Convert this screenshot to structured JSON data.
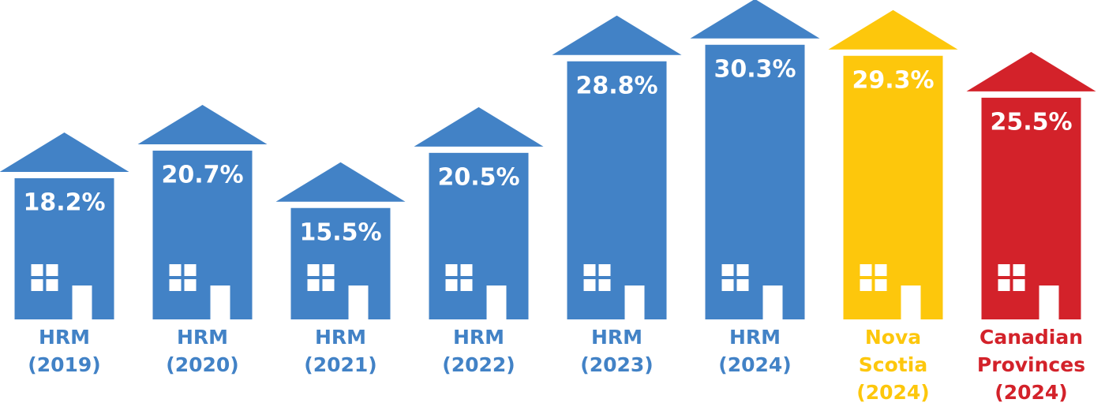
{
  "chart_data": {
    "type": "house-bar",
    "categories": [
      [
        "HRM",
        "(2019)"
      ],
      [
        "HRM",
        "(2020)"
      ],
      [
        "HRM",
        "(2021)"
      ],
      [
        "HRM",
        "(2022)"
      ],
      [
        "HRM",
        "(2023)"
      ],
      [
        "HRM",
        "(2024)"
      ],
      [
        "Nova",
        "Scotia",
        "(2024)"
      ],
      [
        "Canadian",
        "Provinces",
        "(2024)"
      ]
    ],
    "values": [
      18.2,
      20.7,
      15.5,
      20.5,
      28.8,
      30.3,
      29.3,
      25.5
    ],
    "value_labels": [
      "18.2%",
      "20.7%",
      "15.5%",
      "20.5%",
      "28.8%",
      "30.3%",
      "29.3%",
      "25.5%"
    ],
    "colors": [
      "#4282c6",
      "#4282c6",
      "#4282c6",
      "#4282c6",
      "#4282c6",
      "#4282c6",
      "#fdc70c",
      "#d3222a"
    ],
    "ylim": [
      5.4,
      32
    ]
  }
}
